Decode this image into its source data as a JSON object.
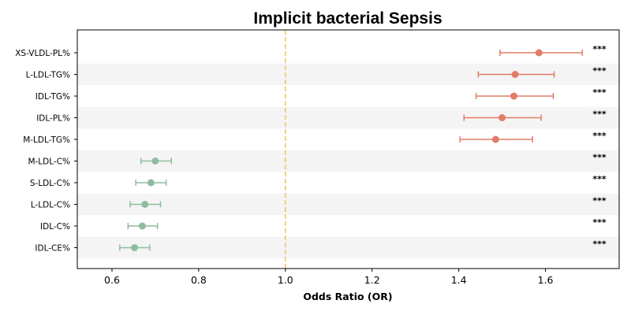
{
  "chart_data": {
    "type": "forest",
    "title": "Implicit bacterial Sepsis",
    "xlabel": "Odds Ratio (OR)",
    "xlim": [
      0.52,
      1.77
    ],
    "xticks": [
      "0.6",
      "0.8",
      "1.0",
      "1.2",
      "1.4",
      "1.6"
    ],
    "reference_line": 1.0,
    "colors": {
      "risk": "#e07b67",
      "protective": "#8fbc9f",
      "reference": "#f0c97a",
      "band": "#f4f4f4"
    },
    "rows": [
      {
        "label": "XS-VLDL-PL%",
        "or": 1.585,
        "lo": 1.495,
        "hi": 1.685,
        "sig": "***",
        "group": "risk"
      },
      {
        "label": "L-LDL-TG%",
        "or": 1.53,
        "lo": 1.445,
        "hi": 1.62,
        "sig": "***",
        "group": "risk"
      },
      {
        "label": "IDL-TG%",
        "or": 1.527,
        "lo": 1.44,
        "hi": 1.618,
        "sig": "***",
        "group": "risk"
      },
      {
        "label": "IDL-PL%",
        "or": 1.5,
        "lo": 1.412,
        "hi": 1.59,
        "sig": "***",
        "group": "risk"
      },
      {
        "label": "M-LDL-TG%",
        "or": 1.485,
        "lo": 1.403,
        "hi": 1.57,
        "sig": "***",
        "group": "risk"
      },
      {
        "label": "M-LDL-C%",
        "or": 0.7,
        "lo": 0.667,
        "hi": 0.737,
        "sig": "***",
        "group": "protective"
      },
      {
        "label": "S-LDL-C%",
        "or": 0.69,
        "lo": 0.655,
        "hi": 0.725,
        "sig": "***",
        "group": "protective"
      },
      {
        "label": "L-LDL-C%",
        "or": 0.676,
        "lo": 0.642,
        "hi": 0.712,
        "sig": "***",
        "group": "protective"
      },
      {
        "label": "IDL-C%",
        "or": 0.67,
        "lo": 0.637,
        "hi": 0.705,
        "sig": "***",
        "group": "protective"
      },
      {
        "label": "IDL-CE%",
        "or": 0.652,
        "lo": 0.618,
        "hi": 0.687,
        "sig": "***",
        "group": "protective"
      }
    ]
  }
}
